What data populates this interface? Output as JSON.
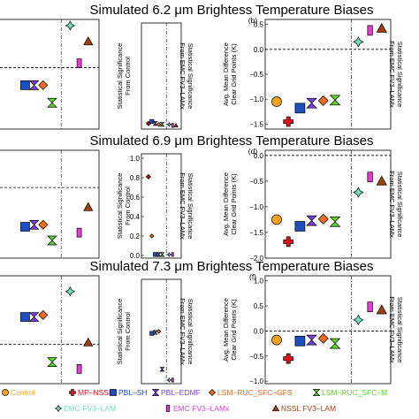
{
  "colors": {
    "control": "#f5a21b",
    "mp_nssl": "#e0101e",
    "pbl_sh": "#1f4fbf",
    "pbl_edmf": "#7b3fe0",
    "lsm_ruc_gfs": "#f06a1d",
    "lsm_ruc_m": "#5bd62a",
    "emc_fv3_lam": "#73e0c0",
    "emc_fv3_lamx": "#e040d0",
    "nssl_fv3_lam": "#a0400f",
    "sig_rest": "#7070c8"
  },
  "legend": {
    "row1": [
      {
        "label": "Control",
        "color": "#f5a21b",
        "marker": "circle",
        "name": "legend-control"
      },
      {
        "label": "MP–NSSL",
        "color": "#e0101e",
        "marker": "cross",
        "name": "legend-mp-nssl"
      },
      {
        "label": "PBL–SH",
        "color": "#1f4fbf",
        "marker": "square",
        "name": "legend-pbl-sh"
      },
      {
        "label": "PBL–EDMF",
        "color": "#7b3fe0",
        "marker": "bowtie",
        "name": "legend-pbl-edmf"
      },
      {
        "label": "LSM–RUC_SFC–GFS",
        "color": "#f06a1d",
        "marker": "diamond",
        "name": "legend-lsm-ruc-sfc-gfs"
      },
      {
        "label": "LSM–RUC_SFC–M",
        "color": "#5bd62a",
        "marker": "hourglass",
        "name": "legend-lsm-ruc-sfc-m"
      }
    ],
    "row2": [
      {
        "label": "EMC FV3–LAM",
        "color": "#73e0c0",
        "marker": "star",
        "name": "legend-emc-fv3-lam"
      },
      {
        "label": "EMC FV3–LAMx",
        "color": "#e040d0",
        "marker": "rect",
        "name": "legend-emc-fv3-lamx"
      },
      {
        "label": "NSSL FV3–LAM",
        "color": "#a0400f",
        "marker": "triangle",
        "name": "legend-nssl-fv3-lam"
      }
    ]
  },
  "chart_data": [
    {
      "type": "scatter",
      "title": "Simulated 6.2 μm Brightess Temperature Biases",
      "significance": {
        "panel_label": "",
        "ylabel_left": "Statistical Significance From Control",
        "ylabel_right": "Statistical Significance From EMC FV3–LAMx",
        "ylim": [
          0,
          1
        ],
        "ticks": [],
        "points": [
          {
            "x": 1,
            "y": 0.03,
            "key": "mp_nssl"
          },
          {
            "x": 2,
            "y": 0.05,
            "key": "pbl_sh"
          },
          {
            "x": 3,
            "y": 0.03,
            "key": "pbl_edmf"
          },
          {
            "x": 4,
            "y": 0.02,
            "key": "lsm_ruc_gfs"
          },
          {
            "x": 5,
            "y": 0.02,
            "key": "lsm_ruc_m"
          },
          {
            "x": 7,
            "y": 0.02,
            "key": "emc_fv3_lam"
          },
          {
            "x": 8,
            "y": 0.01,
            "key": "emc_fv3_lamx"
          },
          {
            "x": 9,
            "y": 0.01,
            "key": "nssl_fv3_lam"
          }
        ]
      },
      "bias": {
        "panel_label": "(b)",
        "ylabel": "Avg. Mean Difference Clear Grid Points (K)",
        "ylabel_right": "Statistical Significance From EMC FV3–LAMx",
        "ylim": [
          -1.6,
          0.6
        ],
        "ticks": [
          "0.5",
          "0.0",
          "−0.5",
          "−1.0",
          "−1.5"
        ],
        "tick_values": [
          0.5,
          0.0,
          -0.5,
          -1.0,
          -1.5
        ],
        "points": [
          {
            "x": 0,
            "y": -1.05,
            "key": "control"
          },
          {
            "x": 1,
            "y": -1.45,
            "key": "mp_nssl"
          },
          {
            "x": 2,
            "y": -1.18,
            "key": "pbl_sh"
          },
          {
            "x": 3,
            "y": -1.08,
            "key": "pbl_edmf"
          },
          {
            "x": 4,
            "y": -1.03,
            "key": "lsm_ruc_gfs"
          },
          {
            "x": 5,
            "y": -1.02,
            "key": "lsm_ruc_m"
          },
          {
            "x": 7,
            "y": 0.15,
            "key": "emc_fv3_lam"
          },
          {
            "x": 8,
            "y": 0.38,
            "key": "emc_fv3_lamx"
          },
          {
            "x": 9,
            "y": 0.42,
            "key": "nssl_fv3_lam"
          }
        ]
      },
      "sig_rel": {
        "ylim": [
          -0.2,
          1.05
        ],
        "dashed": 0.5,
        "points": [
          {
            "x": 2,
            "y": 0.3,
            "key": "pbl_sh"
          },
          {
            "x": 3,
            "y": 0.3,
            "key": "pbl_edmf"
          },
          {
            "x": 4,
            "y": 0.3,
            "key": "lsm_ruc_gfs"
          },
          {
            "x": 5,
            "y": 0.1,
            "key": "lsm_ruc_m"
          },
          {
            "x": 7,
            "y": 0.98,
            "key": "emc_fv3_lam"
          },
          {
            "x": 8,
            "y": 0.55,
            "key": "emc_fv3_lamx"
          },
          {
            "x": 9,
            "y": 0.8,
            "key": "nssl_fv3_lam"
          }
        ]
      }
    },
    {
      "type": "scatter",
      "title": "Simulated 6.9 μm Brightess Temperature Biases",
      "significance": {
        "panel_label": "",
        "ylabel_left": "Statistical Significance From Control",
        "ylabel_right": "Statistical Significance From EMC FV3–LAMx",
        "ylim": [
          0,
          1
        ],
        "ticks": [
          "1.0",
          "0.8",
          "0.6",
          "0.4",
          "0.2",
          "0.0"
        ],
        "tick_values": [
          1.0,
          0.8,
          0.6,
          0.4,
          0.2,
          0.0
        ],
        "points": [
          {
            "x": 1,
            "y": 0.81,
            "key": "mp_nssl"
          },
          {
            "x": 2,
            "y": 0.2,
            "key": "lsm_ruc_gfs"
          },
          {
            "x": 3,
            "y": 0.01,
            "key": "pbl_sh"
          },
          {
            "x": 4,
            "y": 0.01,
            "key": "pbl_edmf"
          },
          {
            "x": 5,
            "y": 0.01,
            "key": "lsm_ruc_m"
          },
          {
            "x": 7,
            "y": 0.01,
            "key": "emc_fv3_lam"
          },
          {
            "x": 8,
            "y": 0.01,
            "key": "emc_fv3_lamx"
          }
        ]
      },
      "bias": {
        "panel_label": "(d)",
        "ylabel": "Avg. Mean Difference Clear Grid Points (K)",
        "ylabel_right": "Statistical Significance From EMC FV3–LAMx",
        "ylim": [
          -2.0,
          0.1
        ],
        "ticks": [
          "0.0",
          "−0.5",
          "−1.0",
          "−1.5",
          "−2.0"
        ],
        "tick_values": [
          0.0,
          -0.5,
          -1.0,
          -1.5,
          -2.0
        ],
        "points": [
          {
            "x": 0,
            "y": -1.25,
            "key": "control"
          },
          {
            "x": 1,
            "y": -1.68,
            "key": "mp_nssl"
          },
          {
            "x": 2,
            "y": -1.38,
            "key": "pbl_sh"
          },
          {
            "x": 3,
            "y": -1.27,
            "key": "pbl_edmf"
          },
          {
            "x": 4,
            "y": -1.24,
            "key": "lsm_ruc_gfs"
          },
          {
            "x": 5,
            "y": -1.29,
            "key": "lsm_ruc_m"
          },
          {
            "x": 7,
            "y": -0.72,
            "key": "emc_fv3_lam"
          },
          {
            "x": 8,
            "y": -0.42,
            "key": "emc_fv3_lamx"
          },
          {
            "x": 9,
            "y": -0.5,
            "key": "nssl_fv3_lam"
          }
        ]
      },
      "sig_rel": {
        "ylim": [
          -0.1,
          1.0
        ],
        "dashed": 0.62,
        "points": [
          {
            "x": 2,
            "y": 0.22,
            "key": "pbl_sh"
          },
          {
            "x": 3,
            "y": 0.24,
            "key": "pbl_edmf"
          },
          {
            "x": 4,
            "y": 0.24,
            "key": "lsm_ruc_gfs"
          },
          {
            "x": 5,
            "y": 0.08,
            "key": "lsm_ruc_m"
          },
          {
            "x": 8,
            "y": 0.16,
            "key": "emc_fv3_lamx"
          },
          {
            "x": 9,
            "y": 0.42,
            "key": "nssl_fv3_lam"
          }
        ]
      }
    },
    {
      "type": "scatter",
      "title": "Simulated 7.3 μm Brightess Temperature Biases",
      "significance": {
        "panel_label": "",
        "ylabel_left": "Statistical Significance From Control",
        "ylabel_right": "Statistical Significance From EMC FV3–LAMx",
        "ylim": [
          0,
          1
        ],
        "ticks": [],
        "points": [
          {
            "x": 2,
            "y": 0.49,
            "key": "pbl_sh"
          },
          {
            "x": 3,
            "y": 0.5,
            "key": "sig_rest"
          },
          {
            "x": 4,
            "y": 0.51,
            "key": "lsm_ruc_gfs"
          },
          {
            "x": 5,
            "y": 0.12,
            "key": "pbl_edmf"
          },
          {
            "x": 7,
            "y": 0.01,
            "key": "emc_fv3_lam"
          },
          {
            "x": 8,
            "y": 0.01,
            "key": "emc_fv3_lamx"
          }
        ]
      },
      "bias": {
        "panel_label": "(f)",
        "ylabel": "Avg. Mean Difference Clear Grid Points (K)",
        "ylabel_right": "Statistical Significance From EMC FV3–LAMx",
        "ylim": [
          -1.05,
          1.1
        ],
        "ticks": [
          "1.0",
          "0.5",
          "0.0",
          "−0.5",
          "−1.0"
        ],
        "tick_values": [
          1.0,
          0.5,
          0.0,
          -0.5,
          -1.0
        ],
        "points": [
          {
            "x": 0,
            "y": -0.18,
            "key": "control"
          },
          {
            "x": 1,
            "y": -0.55,
            "key": "mp_nssl"
          },
          {
            "x": 2,
            "y": -0.2,
            "key": "pbl_sh"
          },
          {
            "x": 3,
            "y": -0.18,
            "key": "pbl_edmf"
          },
          {
            "x": 4,
            "y": -0.15,
            "key": "lsm_ruc_gfs"
          },
          {
            "x": 5,
            "y": -0.25,
            "key": "lsm_ruc_m"
          },
          {
            "x": 7,
            "y": 0.22,
            "key": "emc_fv3_lam"
          },
          {
            "x": 8,
            "y": 0.48,
            "key": "emc_fv3_lamx"
          },
          {
            "x": 9,
            "y": 0.42,
            "key": "nssl_fv3_lam"
          }
        ]
      },
      "sig_rel": {
        "ylim": [
          -0.1,
          1.0
        ],
        "dashed": 0.3,
        "points": [
          {
            "x": 2,
            "y": 0.58,
            "key": "pbl_sh"
          },
          {
            "x": 3,
            "y": 0.58,
            "key": "pbl_edmf"
          },
          {
            "x": 4,
            "y": 0.6,
            "key": "lsm_ruc_gfs"
          },
          {
            "x": 5,
            "y": 0.12,
            "key": "lsm_ruc_m"
          },
          {
            "x": 7,
            "y": 0.84,
            "key": "emc_fv3_lam"
          },
          {
            "x": 8,
            "y": 0.05,
            "key": "emc_fv3_lamx"
          },
          {
            "x": 9,
            "y": 0.32,
            "key": "nssl_fv3_lam"
          }
        ]
      }
    }
  ]
}
